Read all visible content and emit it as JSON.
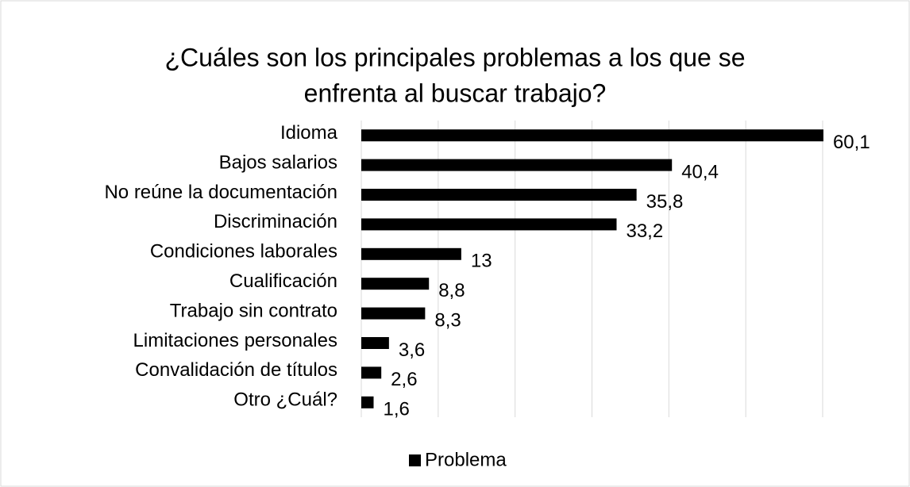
{
  "chart_data": {
    "type": "bar",
    "orientation": "horizontal",
    "title": [
      "¿Cuáles son los principales problemas a los que se",
      "enfrenta al buscar trabajo?"
    ],
    "categories": [
      "Idioma",
      "Bajos salarios",
      "No reúne la documentación",
      "Discriminación",
      "Condiciones laborales",
      "Cualificación",
      "Trabajo sin contrato",
      "Limitaciones personales",
      "Convalidación de títulos",
      "Otro ¿Cuál?"
    ],
    "series": [
      {
        "name": "Problema",
        "color": "#000000",
        "values": [
          60.1,
          40.4,
          35.8,
          33.2,
          13,
          8.8,
          8.3,
          3.6,
          2.6,
          1.6
        ],
        "value_labels": [
          "60,1",
          "40,4",
          "35,8",
          "33,2",
          "13",
          "8,8",
          "8,3",
          "3,6",
          "2,6",
          "1,6"
        ]
      }
    ],
    "xlim": [
      0,
      60
    ],
    "xticks": [
      0,
      10,
      20,
      30,
      40,
      50,
      60
    ],
    "grid": true,
    "legend": "bottom"
  }
}
